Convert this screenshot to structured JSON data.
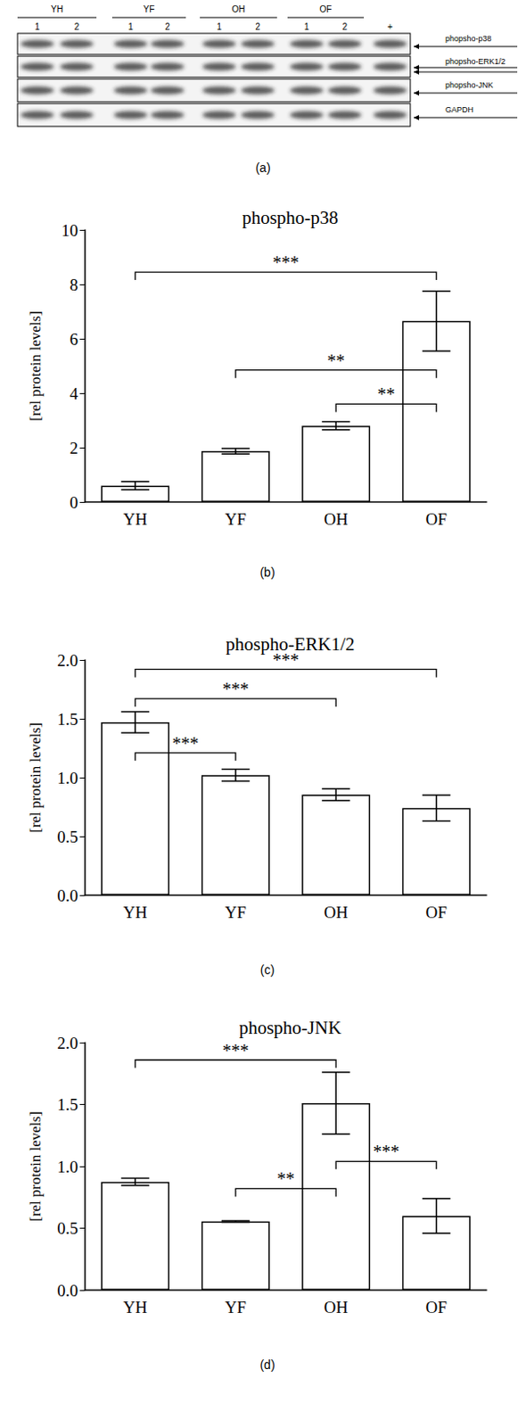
{
  "blot": {
    "panel": "(a)",
    "groups": [
      "YH",
      "YF",
      "OH",
      "OF"
    ],
    "lanes": [
      "1",
      "2"
    ],
    "control": "+",
    "rows": [
      "phopsho-p38",
      "phopsho-ERK1/2",
      "phopsho-JNK",
      "GAPDH"
    ]
  },
  "chart_data": [
    {
      "type": "bar",
      "panel": "(b)",
      "title": "phospho-p38",
      "y_label": "[rel protein levels]",
      "categories": [
        "YH",
        "YF",
        "OH",
        "OF"
      ],
      "values": [
        0.6,
        1.87,
        2.8,
        6.65
      ],
      "errors": [
        0.15,
        0.1,
        0.15,
        1.1
      ],
      "color": "#ffffff",
      "ylim": [
        0,
        10
      ],
      "yticks": [
        0,
        2,
        4,
        6,
        8,
        10
      ],
      "grid": false,
      "significance": [
        {
          "from": "YH",
          "to": "OF",
          "y": 8.45,
          "label": "***"
        },
        {
          "from": "YF",
          "to": "OF",
          "y": 4.85,
          "label": "**"
        },
        {
          "from": "OH",
          "to": "OF",
          "y": 3.6,
          "label": "**"
        }
      ]
    },
    {
      "type": "bar",
      "panel": "(c)",
      "title": "phospho-ERK1/2",
      "y_label": "[rel protein levels]",
      "categories": [
        "YH",
        "YF",
        "OH",
        "OF"
      ],
      "values": [
        1.47,
        1.02,
        0.855,
        0.74
      ],
      "errors": [
        0.09,
        0.05,
        0.05,
        0.11
      ],
      "color": "#ffffff",
      "ylim": [
        0,
        2
      ],
      "yticks": [
        {
          "value": 0,
          "label": "0.0"
        },
        0.5,
        {
          "value": 1,
          "label": "1.0"
        },
        1.5,
        {
          "value": 2,
          "label": "2.0"
        }
      ],
      "grid": false,
      "significance": [
        {
          "from": "YH",
          "to": "OF",
          "y": 1.92,
          "label": "***"
        },
        {
          "from": "YH",
          "to": "OH",
          "y": 1.67,
          "label": "***"
        },
        {
          "from": "YH",
          "to": "YF",
          "y": 1.21,
          "label": "***"
        }
      ]
    },
    {
      "type": "bar",
      "panel": "(d)",
      "title": "phospho-JNK",
      "y_label": "[rel protein levels]",
      "categories": [
        "YH",
        "YF",
        "OH",
        "OF"
      ],
      "values": [
        0.875,
        0.555,
        1.51,
        0.6
      ],
      "errors": [
        0.03,
        0.005,
        0.25,
        0.14
      ],
      "color": "#ffffff",
      "ylim": [
        0,
        2
      ],
      "yticks": [
        {
          "value": 0,
          "label": "0.0"
        },
        0.5,
        {
          "value": 1,
          "label": "1.0"
        },
        1.5,
        {
          "value": 2,
          "label": "2.0"
        }
      ],
      "grid": false,
      "significance": [
        {
          "from": "YH",
          "to": "OH",
          "y": 1.86,
          "label": "***"
        },
        {
          "from": "YF",
          "to": "OH",
          "y": 0.82,
          "label": "**"
        },
        {
          "from": "OH",
          "to": "OF",
          "y": 1.04,
          "label": "***"
        }
      ]
    }
  ]
}
